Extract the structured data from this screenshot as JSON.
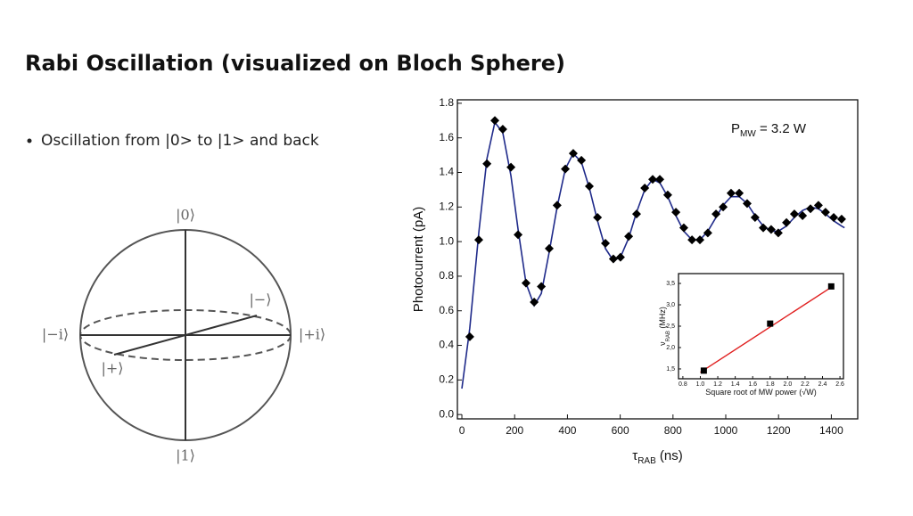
{
  "slide": {
    "title": "Rabi Oscillation (visualized on Bloch Sphere)",
    "bullets": [
      "Oscillation from |0> to |1> and back"
    ]
  },
  "bloch": {
    "labels": {
      "zero": "|0⟩",
      "one": "|1⟩",
      "minus_i": "|−i⟩",
      "plus_i": "|+i⟩",
      "minus": "|−⟩",
      "plus": "|+⟩"
    }
  },
  "chart_data": [
    {
      "type": "scatter",
      "xlabel": {
        "text": "τ",
        "sub": "RAB",
        "tail": " (ns)"
      },
      "ylabel": "Photocurrent (pA)",
      "annotation": {
        "text": "P",
        "sub": "MW",
        "tail": " = 3.2 W"
      },
      "xlim": [
        -17,
        1500
      ],
      "ylim": [
        -0.025,
        1.82
      ],
      "xticks": [
        0,
        200,
        400,
        600,
        800,
        1000,
        1200,
        1400
      ],
      "yticks": [
        {
          "value": 0,
          "label": "0.0"
        },
        {
          "value": 0.2,
          "label": "0.2"
        },
        {
          "value": 0.4,
          "label": "0.4"
        },
        {
          "value": 0.6,
          "label": "0.6"
        },
        {
          "value": 0.8,
          "label": "0.8"
        },
        {
          "value": 1,
          "label": "1.0"
        },
        {
          "value": 1.2,
          "label": "1.2"
        },
        {
          "value": 1.4,
          "label": "1.4"
        },
        {
          "value": 1.6,
          "label": "1.6"
        },
        {
          "value": 1.8,
          "label": "1.8"
        }
      ],
      "series": [
        {
          "color": "#1f2a8a",
          "marker": "line",
          "x": [
            0,
            30,
            64,
            95,
            125,
            155,
            186,
            213,
            243,
            274,
            301,
            331,
            361,
            392,
            422,
            453,
            483,
            514,
            544,
            574,
            601,
            632,
            662,
            693,
            723,
            750,
            780,
            811,
            841,
            872,
            902,
            932,
            963,
            990,
            1020,
            1051,
            1081,
            1111,
            1142,
            1172,
            1199,
            1230,
            1260,
            1291,
            1321,
            1351,
            1378,
            1409,
            1439,
            1450
          ],
          "values": [
            0.15,
            0.5,
            1.05,
            1.48,
            1.69,
            1.63,
            1.38,
            1.07,
            0.76,
            0.63,
            0.7,
            0.94,
            1.2,
            1.42,
            1.51,
            1.46,
            1.31,
            1.12,
            0.96,
            0.89,
            0.91,
            1.02,
            1.17,
            1.3,
            1.36,
            1.34,
            1.26,
            1.15,
            1.06,
            1.01,
            1.01,
            1.06,
            1.14,
            1.21,
            1.26,
            1.26,
            1.22,
            1.15,
            1.09,
            1.06,
            1.06,
            1.09,
            1.14,
            1.18,
            1.2,
            1.19,
            1.16,
            1.12,
            1.09,
            1.08
          ]
        },
        {
          "color": "#000000",
          "marker": "diamond",
          "x": [
            30,
            64,
            95,
            125,
            155,
            186,
            213,
            243,
            274,
            301,
            331,
            361,
            392,
            422,
            453,
            483,
            514,
            544,
            574,
            601,
            632,
            662,
            693,
            723,
            750,
            780,
            811,
            841,
            872,
            902,
            932,
            963,
            990,
            1020,
            1051,
            1081,
            1111,
            1142,
            1172,
            1199,
            1230,
            1260,
            1291,
            1321,
            1351,
            1378,
            1409,
            1439
          ],
          "values": [
            0.45,
            1.01,
            1.45,
            1.7,
            1.65,
            1.43,
            1.04,
            0.76,
            0.65,
            0.74,
            0.96,
            1.21,
            1.42,
            1.51,
            1.47,
            1.32,
            1.14,
            0.99,
            0.9,
            0.91,
            1.03,
            1.16,
            1.31,
            1.36,
            1.36,
            1.27,
            1.17,
            1.08,
            1.01,
            1.01,
            1.05,
            1.16,
            1.2,
            1.28,
            1.28,
            1.22,
            1.14,
            1.08,
            1.07,
            1.05,
            1.11,
            1.16,
            1.15,
            1.19,
            1.21,
            1.17,
            1.14,
            1.13
          ]
        }
      ]
    },
    {
      "type": "scatter",
      "xlabel": {
        "text": "Square root of MW power (√W)"
      },
      "ylabel": {
        "text": "ν",
        "sub": "RAB",
        "tail": " (MHz)"
      },
      "xlim": [
        0.75,
        2.64
      ],
      "ylim": [
        1.27,
        3.73
      ],
      "xticks": [
        0.8,
        {
          "value": 1,
          "label": "1.0"
        },
        1.2,
        1.4,
        1.6,
        1.8,
        {
          "value": 2,
          "label": "2.0"
        },
        2.2,
        2.4,
        2.6
      ],
      "yticks": [
        {
          "value": 1.5,
          "label": "1,5"
        },
        {
          "value": 2,
          "label": "2,0"
        },
        {
          "value": 2.5,
          "label": "2,5"
        },
        {
          "value": 3,
          "label": "3,0"
        },
        {
          "value": 3.5,
          "label": "3,5"
        }
      ],
      "series": [
        {
          "color": "#e02020",
          "marker": "line",
          "x": [
            1.0,
            2.53
          ],
          "values": [
            1.42,
            3.45
          ]
        },
        {
          "color": "#000000",
          "marker": "square",
          "x": [
            1.04,
            1.8,
            2.5
          ],
          "values": [
            1.46,
            2.56,
            3.43
          ]
        }
      ]
    }
  ]
}
